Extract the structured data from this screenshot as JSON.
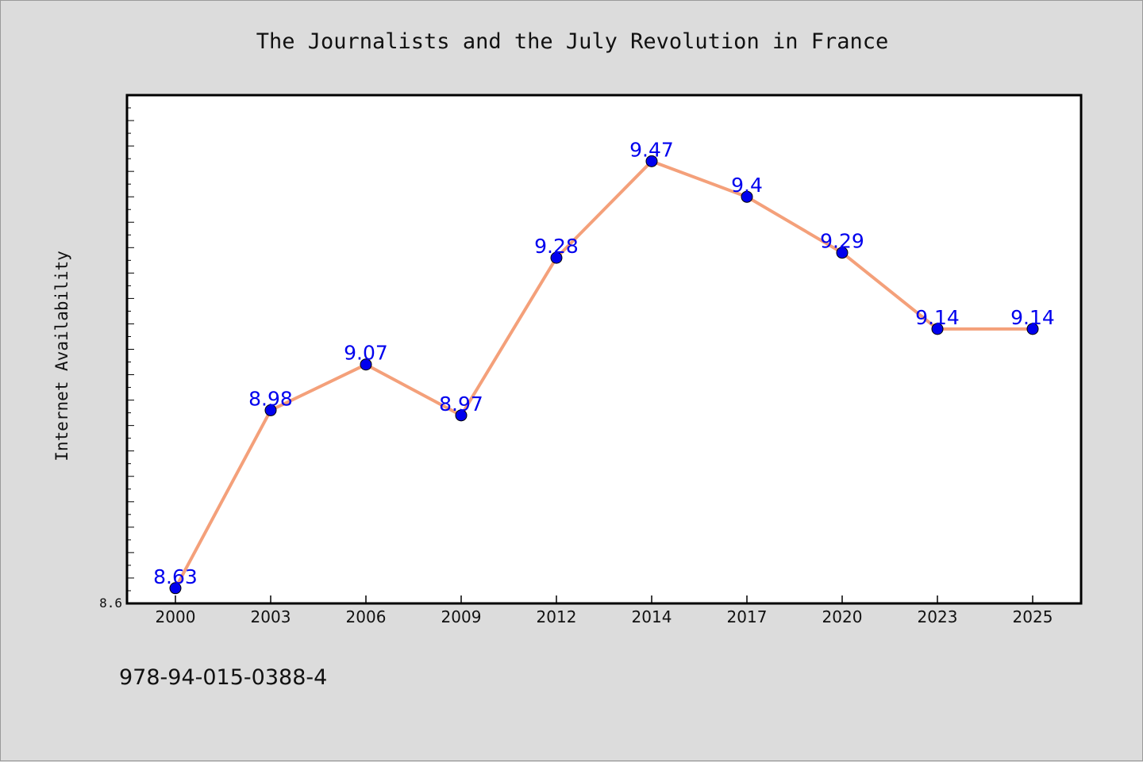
{
  "chart_data": {
    "type": "line",
    "title": "The Journalists and the July Revolution in France",
    "xlabel": "",
    "ylabel": "Internet Availability",
    "categories": [
      "2000",
      "2003",
      "2006",
      "2009",
      "2012",
      "2014",
      "2017",
      "2020",
      "2023",
      "2025"
    ],
    "series": [
      {
        "values": [
          8.63,
          8.98,
          9.07,
          8.97,
          9.28,
          9.47,
          9.4,
          9.29,
          9.14,
          9.14
        ]
      }
    ],
    "data_labels": [
      "8.63",
      "8.98",
      "9.07",
      "8.97",
      "9.28",
      "9.47",
      "9.4",
      "9.29",
      "9.14",
      "9.14"
    ],
    "ylim": [
      8.6,
      9.6
    ],
    "yticks_labeled": [
      "8.6"
    ],
    "grid": false,
    "legend": "none",
    "colors": {
      "line": "#f4a07a",
      "marker": "#0000ee",
      "data_label": "#0000ee",
      "background": "#dcdcdc",
      "plot_area": "#ffffff"
    }
  },
  "footer": {
    "isbn": "978-94-015-0388-4"
  }
}
